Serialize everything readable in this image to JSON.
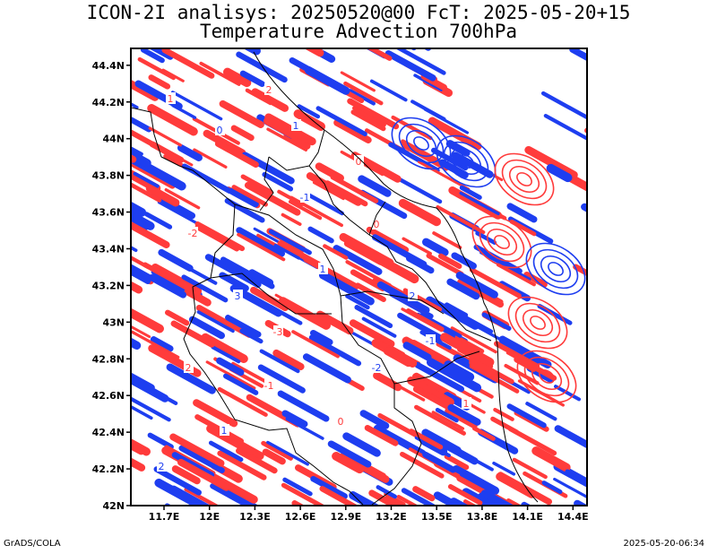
{
  "title_line1": "ICON-2I analisys: 20250520@00 FcT: 2025-05-20+15",
  "title_line2": "Temperature Advection 700hPa",
  "footer_left": "GrADS/COLA",
  "footer_right": "2025-05-20-06:34",
  "colors": {
    "warm": "#ff3b3b",
    "cold": "#1e3ef0",
    "border": "#000000"
  },
  "lat_labels": [
    "44.4N",
    "44.2N",
    "44N",
    "43.8N",
    "43.6N",
    "43.4N",
    "43.2N",
    "43N",
    "42.8N",
    "42.6N",
    "42.4N",
    "42.2N",
    "42N"
  ],
  "lon_labels": [
    "11.7E",
    "12E",
    "12.3E",
    "12.6E",
    "12.9E",
    "13.2E",
    "13.5E",
    "13.8E",
    "14.1E",
    "14.4E"
  ],
  "contour_labels": [
    "1",
    "0",
    "2",
    "-1",
    "-2",
    "3",
    "-3",
    "1",
    "0",
    "2",
    "-1",
    "1",
    "0",
    "-2",
    "2",
    "1",
    "0",
    "-1",
    "1",
    "2"
  ]
}
